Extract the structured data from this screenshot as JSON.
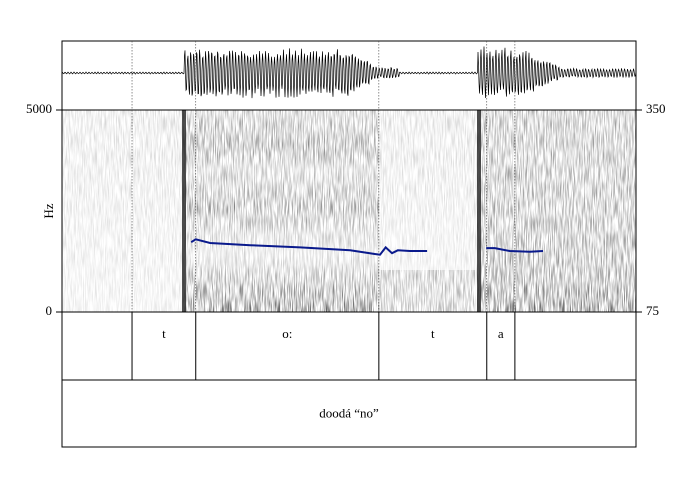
{
  "chart_data": {
    "type": "spectrogram",
    "ylabel": "Hz",
    "ylim": [
      0,
      5000
    ],
    "yticks": [
      0,
      5000
    ],
    "y2lim": [
      75,
      350
    ],
    "y2ticks": [
      75,
      350
    ],
    "xlim": [
      0,
      1
    ],
    "pitch": {
      "color": "#0a1a8c",
      "axis": "y2",
      "x": [
        0.225,
        0.233,
        0.258,
        0.328,
        0.415,
        0.502,
        0.545,
        0.554,
        0.564,
        0.575,
        0.585,
        0.606,
        0.636,
        0.69,
        0.739,
        0.754,
        0.78,
        0.815,
        0.838
      ],
      "values": [
        170,
        174,
        169,
        166,
        163,
        159,
        154,
        153,
        163,
        155,
        159,
        158,
        158,
        null,
        162,
        162,
        158,
        157,
        158
      ]
    },
    "tiers": [
      {
        "boundaries": [
          0.122,
          0.233,
          0.552,
          0.74,
          0.789
        ],
        "labels": [
          null,
          "t",
          "o:",
          "t",
          "a",
          null
        ]
      },
      {
        "boundaries": [],
        "labels": [
          "doodá “no”"
        ]
      }
    ]
  }
}
